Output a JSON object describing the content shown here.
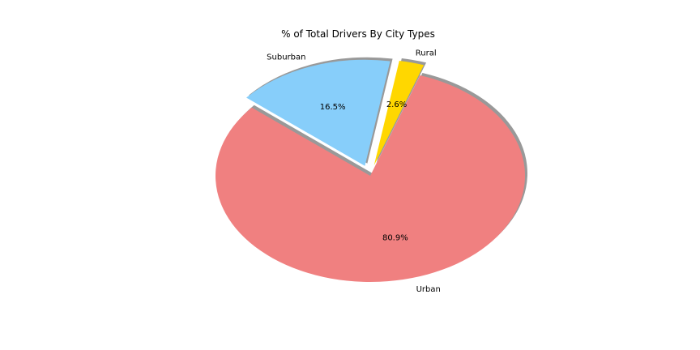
{
  "chart_data": {
    "type": "pie",
    "title": "% of Total Drivers By City Types",
    "slices": [
      {
        "label": "Urban",
        "value": 80.9,
        "pct_label": "80.9%",
        "color": "#f08080",
        "explode": 0
      },
      {
        "label": "Rural",
        "value": 2.6,
        "pct_label": "2.6%",
        "color": "#ffd700",
        "explode": 0.1
      },
      {
        "label": "Suburban",
        "value": 16.5,
        "pct_label": "16.5%",
        "color": "#87cefa",
        "explode": 0.1
      }
    ],
    "start_angle_deg": 140,
    "shadow": true
  }
}
